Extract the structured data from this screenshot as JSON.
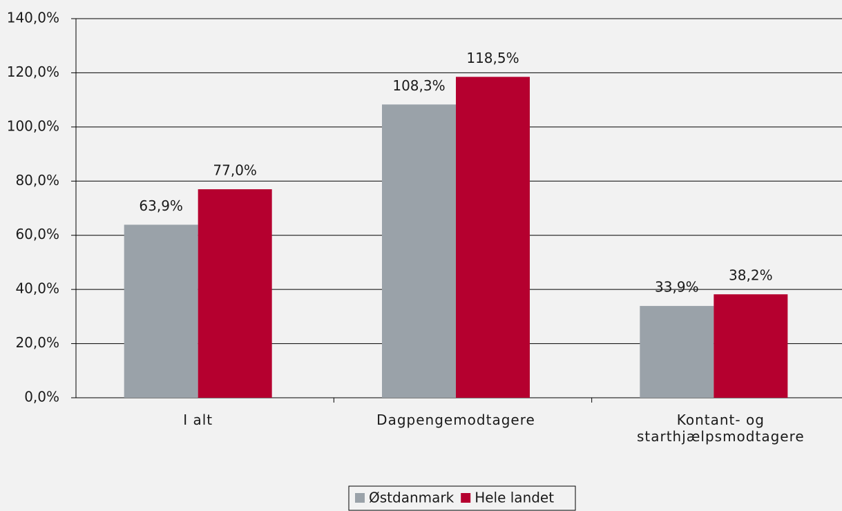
{
  "chart_data": {
    "type": "bar",
    "categories": [
      "I alt",
      "Dagpengemodtagere",
      "Kontant- og starthjælpsmodtagere"
    ],
    "series": [
      {
        "name": "Østdanmark",
        "color": "#9aa2a9",
        "values": [
          63.9,
          108.3,
          33.9
        ],
        "value_labels": [
          "63,9%",
          "108,3%",
          "33,9%"
        ]
      },
      {
        "name": "Hele landet",
        "color": "#b5002f",
        "values": [
          77.0,
          118.5,
          38.2
        ],
        "value_labels": [
          "77,0%",
          "118,5%",
          "38,2%"
        ]
      }
    ],
    "ylim": [
      0,
      140
    ],
    "yticks": [
      {
        "value": 0,
        "label": "0,0%"
      },
      {
        "value": 20,
        "label": "20,0%"
      },
      {
        "value": 40,
        "label": "40,0%"
      },
      {
        "value": 60,
        "label": "60,0%"
      },
      {
        "value": 80,
        "label": "80,0%"
      },
      {
        "value": 100,
        "label": "100,0%"
      },
      {
        "value": 120,
        "label": "120,0%"
      },
      {
        "value": 140,
        "label": "140,0%"
      }
    ],
    "grid": true,
    "legend": "bottom"
  }
}
